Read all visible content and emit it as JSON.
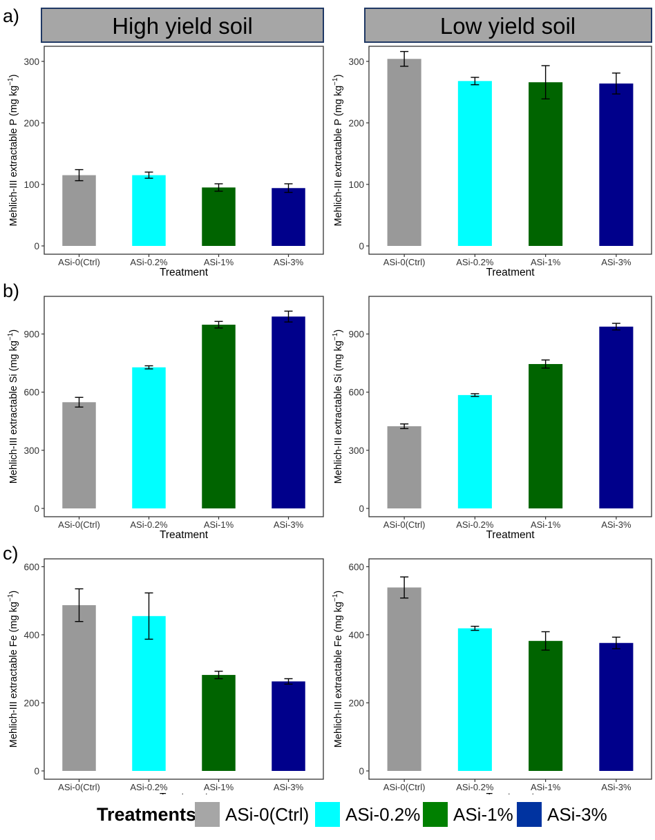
{
  "colors": {
    "ASi-0(Ctrl)": "#999999",
    "ASi-0.2%": "#00ffff",
    "ASi-1%": "#006400",
    "ASi-3%": "#00008b",
    "strip_fill": "#a6a6a6",
    "strip_border": "#1f3864"
  },
  "strips": {
    "left": "High yield soil",
    "right": "Low yield soil"
  },
  "row_labels": [
    "a)",
    "b)",
    "c)"
  ],
  "legend": {
    "title": "Treatments",
    "items": [
      {
        "label": "ASi-0(Ctrl)",
        "color": "#a6a6a6"
      },
      {
        "label": "ASi-0.2%",
        "color": "#00ffff"
      },
      {
        "label": "ASi-1%",
        "color": "#008000"
      },
      {
        "label": "ASi-3%",
        "color": "#0033a0"
      }
    ]
  },
  "chart_data": [
    {
      "id": "a-high",
      "type": "bar",
      "row": 0,
      "col": 0,
      "nutrient": "P",
      "xlabel": "Treatment",
      "ylabel": "Mehlich-III extractable P",
      "categories": [
        "ASi-0(Ctrl)",
        "ASi-0.2%",
        "ASi-1%",
        "ASi-3%"
      ],
      "values": [
        115,
        115,
        95,
        94
      ],
      "errors": [
        9,
        5,
        6,
        7
      ],
      "ylim": [
        0,
        320
      ],
      "yticks": [
        0,
        100,
        200,
        300
      ]
    },
    {
      "id": "a-low",
      "type": "bar",
      "row": 0,
      "col": 1,
      "nutrient": "P",
      "xlabel": "Treatment",
      "ylabel": "Mehlich-III extractable P",
      "categories": [
        "ASi-0(Ctrl)",
        "ASi-0.2%",
        "ASi-1%",
        "ASi-3%"
      ],
      "values": [
        304,
        268,
        266,
        264
      ],
      "errors": [
        12,
        6,
        27,
        17
      ],
      "ylim": [
        0,
        320
      ],
      "yticks": [
        0,
        100,
        200,
        300
      ]
    },
    {
      "id": "b-high",
      "type": "bar",
      "row": 1,
      "col": 0,
      "nutrient": "Si",
      "xlabel": "Treatment",
      "ylabel": "Mehlich-III extractable Si",
      "categories": [
        "ASi-0(Ctrl)",
        "ASi-0.2%",
        "ASi-1%",
        "ASi-3%"
      ],
      "values": [
        548,
        728,
        948,
        990
      ],
      "errors": [
        25,
        8,
        17,
        28
      ],
      "ylim": [
        0,
        1080
      ],
      "yticks": [
        0,
        300,
        600,
        900
      ]
    },
    {
      "id": "b-low",
      "type": "bar",
      "row": 1,
      "col": 1,
      "nutrient": "Si",
      "xlabel": "Treatment",
      "ylabel": "Mehlich-III extractable Si",
      "categories": [
        "ASi-0(Ctrl)",
        "ASi-0.2%",
        "ASi-1%",
        "ASi-3%"
      ],
      "values": [
        424,
        585,
        745,
        938
      ],
      "errors": [
        12,
        7,
        21,
        17
      ],
      "ylim": [
        0,
        1080
      ],
      "yticks": [
        0,
        300,
        600,
        900
      ]
    },
    {
      "id": "c-high",
      "type": "bar",
      "row": 2,
      "col": 0,
      "nutrient": "Fe",
      "xlabel": "Treatment",
      "ylabel": "Mehlich-III extractable Fe",
      "categories": [
        "ASi-0(Ctrl)",
        "ASi-0.2%",
        "ASi-1%",
        "ASi-3%"
      ],
      "values": [
        487,
        455,
        282,
        263
      ],
      "errors": [
        48,
        68,
        11,
        8
      ],
      "ylim": [
        0,
        615
      ],
      "yticks": [
        0,
        200,
        400,
        600
      ]
    },
    {
      "id": "c-low",
      "type": "bar",
      "row": 2,
      "col": 1,
      "nutrient": "Fe",
      "xlabel": "Treatment",
      "ylabel": "Mehlich-III extractable Fe",
      "categories": [
        "ASi-0(Ctrl)",
        "ASi-0.2%",
        "ASi-1%",
        "ASi-3%"
      ],
      "values": [
        539,
        419,
        382,
        376
      ],
      "errors": [
        31,
        6,
        27,
        17
      ],
      "ylim": [
        0,
        615
      ],
      "yticks": [
        0,
        200,
        400,
        600
      ]
    }
  ]
}
